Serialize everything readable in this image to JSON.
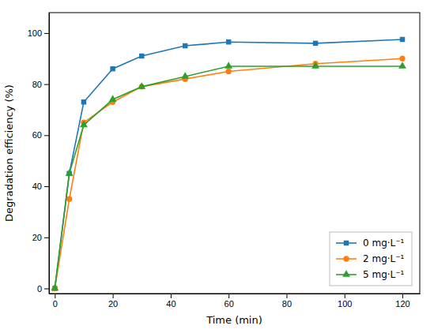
{
  "chart_data": {
    "type": "line",
    "xlabel": "Time (min)",
    "ylabel": "Degradation efficiency (%)",
    "x": [
      0,
      5,
      10,
      20,
      30,
      45,
      60,
      90,
      120
    ],
    "series": [
      {
        "name": "0 mg·L⁻¹",
        "marker": "square",
        "values": [
          0,
          45,
          73,
          86,
          91,
          95,
          96.5,
          96,
          97.5
        ]
      },
      {
        "name": "2 mg·L⁻¹",
        "marker": "circle",
        "values": [
          0,
          35,
          65,
          73,
          79,
          82,
          85,
          88,
          90
        ]
      },
      {
        "name": "5 mg·L⁻¹",
        "marker": "triangle",
        "values": [
          0,
          45,
          64,
          74,
          79,
          83,
          87,
          87,
          87
        ]
      }
    ],
    "xlim": [
      -2,
      126
    ],
    "ylim": [
      -2,
      108
    ],
    "xticks": [
      0,
      20,
      40,
      60,
      80,
      100,
      120
    ],
    "yticks": [
      0,
      20,
      40,
      60,
      80,
      100
    ],
    "legend": "lower right",
    "grid": false
  }
}
